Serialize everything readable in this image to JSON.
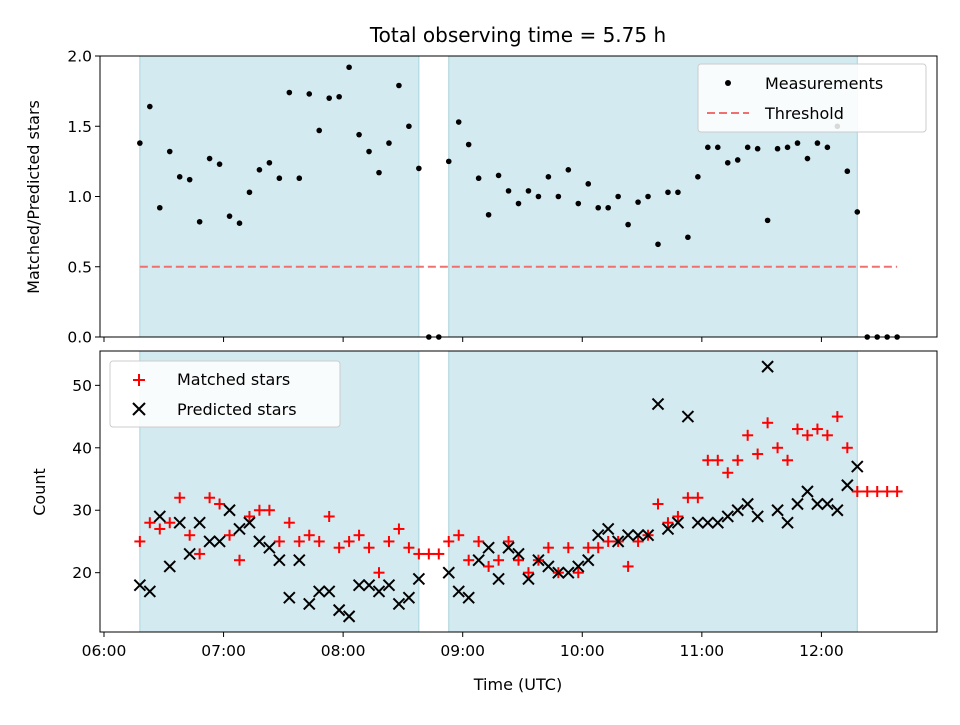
{
  "chart_data": [
    {
      "type": "scatter",
      "title": "Total observing time = 5.75 h",
      "xlabel": "",
      "ylabel": "Matched/Predicted stars",
      "xlim": [
        "05:58",
        "12:58"
      ],
      "ylim": [
        0,
        2.0
      ],
      "yticks": [
        "0.0",
        "0.5",
        "1.0",
        "1.5",
        "2.0"
      ],
      "legend_position": "upper right",
      "shaded_intervals": [
        [
          "06:18",
          "08:38"
        ],
        [
          "08:53",
          "12:18"
        ]
      ],
      "threshold": {
        "name": "Threshold",
        "value": 0.5,
        "x": [
          "06:18",
          "12:38"
        ],
        "color": "#f07070"
      },
      "series": [
        {
          "name": "Measurements",
          "marker": "dot",
          "color": "#000000",
          "points": [
            [
              "06:18",
              1.38
            ],
            [
              "06:23",
              1.64
            ],
            [
              "06:28",
              0.92
            ],
            [
              "06:33",
              1.32
            ],
            [
              "06:38",
              1.14
            ],
            [
              "06:43",
              1.12
            ],
            [
              "06:48",
              0.82
            ],
            [
              "06:53",
              1.27
            ],
            [
              "06:58",
              1.23
            ],
            [
              "07:03",
              0.86
            ],
            [
              "07:08",
              0.81
            ],
            [
              "07:13",
              1.03
            ],
            [
              "07:18",
              1.19
            ],
            [
              "07:23",
              1.24
            ],
            [
              "07:28",
              1.13
            ],
            [
              "07:33",
              1.74
            ],
            [
              "07:38",
              1.13
            ],
            [
              "07:43",
              1.73
            ],
            [
              "07:48",
              1.47
            ],
            [
              "07:53",
              1.7
            ],
            [
              "07:58",
              1.71
            ],
            [
              "08:03",
              1.92
            ],
            [
              "08:08",
              1.44
            ],
            [
              "08:13",
              1.32
            ],
            [
              "08:18",
              1.17
            ],
            [
              "08:23",
              1.38
            ],
            [
              "08:28",
              1.79
            ],
            [
              "08:33",
              1.5
            ],
            [
              "08:38",
              1.2
            ],
            [
              "08:43",
              0.0
            ],
            [
              "08:48",
              0.0
            ],
            [
              "08:53",
              1.25
            ],
            [
              "08:58",
              1.53
            ],
            [
              "09:03",
              1.37
            ],
            [
              "09:08",
              1.13
            ],
            [
              "09:13",
              0.87
            ],
            [
              "09:18",
              1.15
            ],
            [
              "09:23",
              1.04
            ],
            [
              "09:28",
              0.95
            ],
            [
              "09:33",
              1.04
            ],
            [
              "09:38",
              1.0
            ],
            [
              "09:43",
              1.14
            ],
            [
              "09:48",
              1.0
            ],
            [
              "09:53",
              1.19
            ],
            [
              "09:58",
              0.95
            ],
            [
              "10:03",
              1.09
            ],
            [
              "10:08",
              0.92
            ],
            [
              "10:13",
              0.92
            ],
            [
              "10:18",
              1.0
            ],
            [
              "10:23",
              0.8
            ],
            [
              "10:28",
              0.96
            ],
            [
              "10:33",
              1.0
            ],
            [
              "10:38",
              0.66
            ],
            [
              "10:43",
              1.03
            ],
            [
              "10:48",
              1.03
            ],
            [
              "10:53",
              0.71
            ],
            [
              "10:58",
              1.14
            ],
            [
              "11:03",
              1.35
            ],
            [
              "11:08",
              1.35
            ],
            [
              "11:13",
              1.24
            ],
            [
              "11:18",
              1.26
            ],
            [
              "11:23",
              1.35
            ],
            [
              "11:28",
              1.34
            ],
            [
              "11:33",
              0.83
            ],
            [
              "11:38",
              1.34
            ],
            [
              "11:43",
              1.35
            ],
            [
              "11:48",
              1.38
            ],
            [
              "11:53",
              1.27
            ],
            [
              "11:58",
              1.38
            ],
            [
              "12:03",
              1.35
            ],
            [
              "12:08",
              1.5
            ],
            [
              "12:13",
              1.18
            ],
            [
              "12:18",
              0.89
            ],
            [
              "12:23",
              0.0
            ],
            [
              "12:28",
              0.0
            ],
            [
              "12:33",
              0.0
            ],
            [
              "12:38",
              0.0
            ]
          ]
        }
      ]
    },
    {
      "type": "scatter",
      "title": "",
      "xlabel": "Time (UTC)",
      "ylabel": "Count",
      "xlim": [
        "05:58",
        "12:58"
      ],
      "ylim": [
        10.5,
        55.5
      ],
      "xticks": [
        "06:00",
        "07:00",
        "08:00",
        "09:00",
        "10:00",
        "11:00",
        "12:00"
      ],
      "yticks": [
        "20",
        "30",
        "40",
        "50"
      ],
      "legend_position": "upper left",
      "shaded_intervals": [
        [
          "06:18",
          "08:38"
        ],
        [
          "08:53",
          "12:18"
        ]
      ],
      "x": [
        "06:18",
        "06:23",
        "06:28",
        "06:33",
        "06:38",
        "06:43",
        "06:48",
        "06:53",
        "06:58",
        "07:03",
        "07:08",
        "07:13",
        "07:18",
        "07:23",
        "07:28",
        "07:33",
        "07:38",
        "07:43",
        "07:48",
        "07:53",
        "07:58",
        "08:03",
        "08:08",
        "08:13",
        "08:18",
        "08:23",
        "08:28",
        "08:33",
        "08:38",
        "08:43",
        "08:48",
        "08:53",
        "08:58",
        "09:03",
        "09:08",
        "09:13",
        "09:18",
        "09:23",
        "09:28",
        "09:33",
        "09:38",
        "09:43",
        "09:48",
        "09:53",
        "09:58",
        "10:03",
        "10:08",
        "10:13",
        "10:18",
        "10:23",
        "10:28",
        "10:33",
        "10:38",
        "10:43",
        "10:48",
        "10:53",
        "10:58",
        "11:03",
        "11:08",
        "11:13",
        "11:18",
        "11:23",
        "11:28",
        "11:33",
        "11:38",
        "11:43",
        "11:48",
        "11:53",
        "11:58",
        "12:03",
        "12:08",
        "12:13",
        "12:18",
        "12:23",
        "12:28",
        "12:33",
        "12:38"
      ],
      "series": [
        {
          "name": "Matched stars",
          "marker": "plus",
          "color": "#ff0000",
          "values": [
            25,
            28,
            27,
            28,
            32,
            26,
            23,
            32,
            31,
            26,
            22,
            29,
            30,
            30,
            25,
            28,
            25,
            26,
            25,
            29,
            24,
            25,
            26,
            24,
            20,
            25,
            27,
            24,
            23,
            23,
            23,
            25,
            26,
            22,
            25,
            21,
            22,
            25,
            22,
            20,
            22,
            24,
            20,
            24,
            20,
            24,
            24,
            25,
            25,
            21,
            25,
            26,
            31,
            28,
            29,
            32,
            32,
            38,
            38,
            36,
            38,
            42,
            39,
            44,
            40,
            38,
            43,
            42,
            43,
            42,
            45,
            40,
            33,
            33,
            33,
            33,
            33
          ]
        },
        {
          "name": "Predicted stars",
          "marker": "x",
          "color": "#000000",
          "values": [
            18,
            17,
            29,
            21,
            28,
            23,
            28,
            25,
            25,
            30,
            27,
            28,
            25,
            24,
            22,
            16,
            22,
            15,
            17,
            17,
            14,
            13,
            18,
            18,
            17,
            18,
            15,
            16,
            19,
            null,
            null,
            20,
            17,
            16,
            22,
            24,
            19,
            24,
            23,
            19,
            22,
            21,
            20,
            20,
            21,
            22,
            26,
            27,
            25,
            26,
            26,
            26,
            47,
            27,
            28,
            45,
            28,
            28,
            28,
            29,
            30,
            31,
            29,
            53,
            30,
            28,
            31,
            33,
            31,
            31,
            30,
            34,
            37,
            null,
            null,
            null,
            null
          ]
        }
      ]
    }
  ]
}
